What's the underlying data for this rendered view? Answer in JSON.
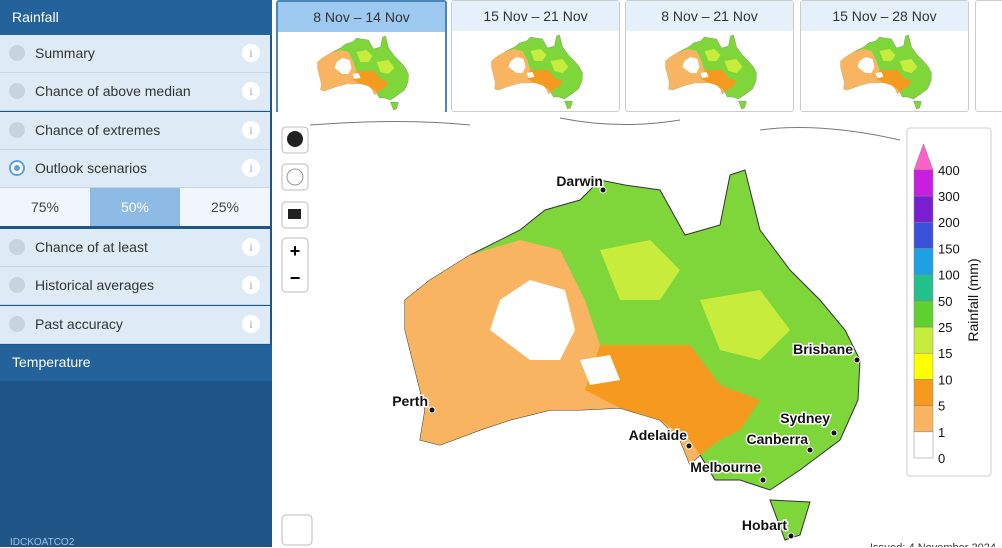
{
  "sidebar": {
    "rainfall": {
      "title": "Rainfall",
      "items": [
        "Summary",
        "Chance of above median",
        "Chance of extremes",
        "Outlook scenarios"
      ],
      "scenarios": [
        "75%",
        "50%",
        "25%"
      ],
      "more_items": [
        "Chance of at least",
        "Historical averages",
        "Past accuracy"
      ]
    },
    "temperature": "Temperature",
    "product_code": "IDCKOATCO2"
  },
  "tabs": [
    "8 Nov – 14 Nov",
    "15 Nov – 21 Nov",
    "8 Nov – 21 Nov",
    "15 Nov – 28 Nov"
  ],
  "map": {
    "cities": [
      "Darwin",
      "Brisbane",
      "Perth",
      "Sydney",
      "Adelaide",
      "Canberra",
      "Melbourne",
      "Hobart"
    ],
    "legend": {
      "title": "Rainfall (mm)",
      "labels": [
        "0",
        "1",
        "5",
        "10",
        "15",
        "25",
        "50",
        "100",
        "150",
        "200",
        "300",
        "400"
      ]
    },
    "issued": "Issued: 4 November 2024"
  }
}
